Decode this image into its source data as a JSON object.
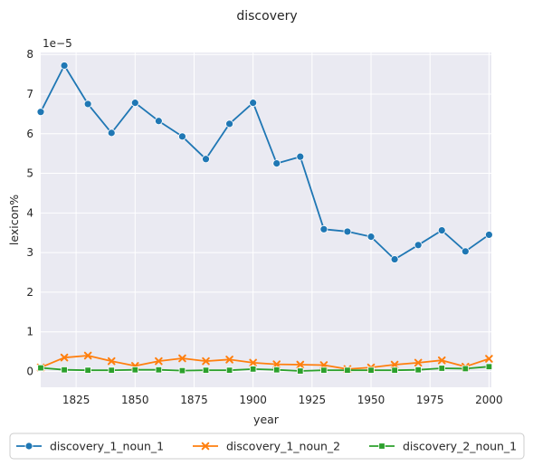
{
  "chart_data": {
    "type": "line",
    "title": "discovery",
    "xlabel": "year",
    "ylabel": "lexicon%",
    "y_scale_label": "1e−5",
    "xlim": [
      1810,
      2001
    ],
    "ylim": [
      -0.4,
      8.05
    ],
    "x_ticks": [
      1825,
      1850,
      1875,
      1900,
      1925,
      1950,
      1975,
      2000
    ],
    "y_ticks": [
      0,
      1,
      2,
      3,
      4,
      5,
      6,
      7,
      8
    ],
    "grid": true,
    "legend_position": "bottom",
    "x": [
      1810,
      1820,
      1830,
      1840,
      1850,
      1860,
      1870,
      1880,
      1890,
      1900,
      1910,
      1920,
      1930,
      1940,
      1950,
      1960,
      1970,
      1980,
      1990,
      2000
    ],
    "series": [
      {
        "name": "discovery_1_noun_1",
        "color": "#1f77b4",
        "marker": "circle",
        "values": [
          6.55,
          7.72,
          6.75,
          6.02,
          6.78,
          6.32,
          5.93,
          5.36,
          6.25,
          6.78,
          5.25,
          5.42,
          3.59,
          3.53,
          3.4,
          2.83,
          3.19,
          3.56,
          3.03,
          3.45
        ]
      },
      {
        "name": "discovery_1_noun_2",
        "color": "#ff7f0e",
        "marker": "x",
        "values": [
          0.1,
          0.35,
          0.4,
          0.26,
          0.14,
          0.26,
          0.33,
          0.26,
          0.3,
          0.22,
          0.18,
          0.17,
          0.16,
          0.06,
          0.1,
          0.17,
          0.22,
          0.28,
          0.12,
          0.32
        ]
      },
      {
        "name": "discovery_2_noun_1",
        "color": "#2ca02c",
        "marker": "square",
        "values": [
          0.09,
          0.04,
          0.03,
          0.03,
          0.04,
          0.04,
          0.02,
          0.03,
          0.03,
          0.06,
          0.04,
          0.01,
          0.03,
          0.03,
          0.03,
          0.03,
          0.04,
          0.08,
          0.07,
          0.12
        ]
      }
    ]
  }
}
